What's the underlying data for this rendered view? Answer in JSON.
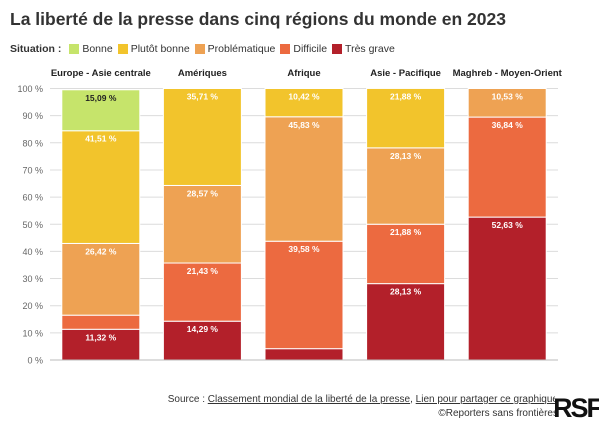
{
  "title": "La liberté de la presse dans cinq régions du monde en 2023",
  "legend": {
    "title": "Situation :",
    "items": [
      {
        "label": "Bonne",
        "color": "#c6e46b"
      },
      {
        "label": "Plutôt bonne",
        "color": "#f2c42c"
      },
      {
        "label": "Problématique",
        "color": "#eea253"
      },
      {
        "label": "Difficile",
        "color": "#ec6a40"
      },
      {
        "label": "Très grave",
        "color": "#b3202a"
      }
    ]
  },
  "chart_data": {
    "type": "bar",
    "stacked": true,
    "title": "La liberté de la presse dans cinq régions du monde en 2023",
    "categories": [
      "Europe - Asie centrale",
      "Amériques",
      "Afrique",
      "Asie - Pacifique",
      "Maghreb - Moyen-Orient"
    ],
    "series": [
      {
        "name": "Très grave",
        "color": "#b3202a",
        "values": [
          11.32,
          14.29,
          4.17,
          28.13,
          52.63
        ],
        "labels": [
          "11,32 %",
          "14,29 %",
          "",
          "28,13 %",
          "52,63 %"
        ]
      },
      {
        "name": "Difficile",
        "color": "#ec6a40",
        "values": [
          5.19,
          21.43,
          39.58,
          21.88,
          36.84
        ],
        "labels": [
          "",
          "21,43 %",
          "39,58 %",
          "21,88 %",
          "36,84 %"
        ]
      },
      {
        "name": "Problématique",
        "color": "#eea253",
        "values": [
          26.42,
          28.57,
          45.83,
          28.13,
          10.53
        ],
        "labels": [
          "26,42 %",
          "28,57 %",
          "45,83 %",
          "28,13 %",
          "10,53 %"
        ]
      },
      {
        "name": "Plutôt bonne",
        "color": "#f2c42c",
        "values": [
          41.51,
          35.71,
          10.42,
          21.88,
          0
        ],
        "labels": [
          "41,51 %",
          "35,71 %",
          "10,42 %",
          "21,88 %",
          ""
        ]
      },
      {
        "name": "Bonne",
        "color": "#c6e46b",
        "values": [
          15.09,
          0,
          0,
          0,
          0
        ],
        "labels": [
          "15,09 %",
          "",
          "",
          "",
          ""
        ]
      }
    ],
    "ylim": [
      0,
      100
    ],
    "yticks": [
      "0 %",
      "10 %",
      "20 %",
      "30 %",
      "40 %",
      "50 %",
      "60 %",
      "70 %",
      "80 %",
      "90 %",
      "100 %"
    ],
    "grid": true,
    "legend": "top-left"
  },
  "source": {
    "prefix": "Source : ",
    "link1": "Classement mondial de la liberté de la presse",
    "sep": ", ",
    "link2": "Lien pour partager ce graphique",
    "credit": "©Reporters sans frontières"
  },
  "logo": {
    "text": "RSF"
  }
}
